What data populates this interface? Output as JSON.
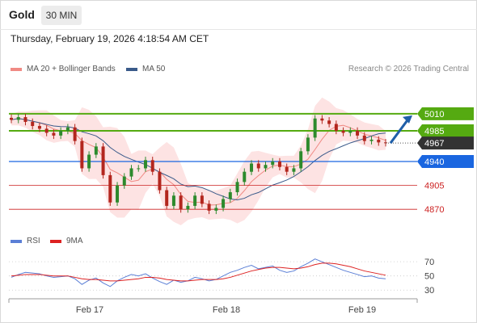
{
  "header": {
    "title": "Gold",
    "timeframe": "30 MIN",
    "timestamp": "Thursday, February 19, 2026 4:18:54 AM CET"
  },
  "legend": {
    "bollinger": {
      "label": "MA 20 + Bollinger Bands",
      "color": "#f08a84"
    },
    "ma50": {
      "label": "MA 50",
      "color": "#3a5a8a"
    },
    "credit": "Research © 2026 Trading Central"
  },
  "rsi_legend": {
    "rsi": {
      "label": "RSI",
      "color": "#5b7fd6"
    },
    "ma9": {
      "label": "9MA",
      "color": "#dd2222"
    }
  },
  "chart_data": [
    {
      "type": "candlestick",
      "x_labels": [
        "Feb 17",
        "Feb 18",
        "Feb 19"
      ],
      "ylim": [
        4843,
        5037
      ],
      "y_scale": "price",
      "current_price": {
        "label": "4967",
        "value": 4967,
        "color": "#333333"
      },
      "resistance_levels": [
        {
          "label": "5010",
          "value": 5010,
          "color": "#55aa11"
        },
        {
          "label": "4985",
          "value": 4985,
          "color": "#55aa11"
        }
      ],
      "pivot_level": {
        "label": "4940",
        "value": 4940,
        "color": "#1a66e0"
      },
      "support_levels": [
        {
          "label": "4905",
          "value": 4905,
          "color": "#cc2222"
        },
        {
          "label": "4870",
          "value": 4870,
          "color": "#cc2222"
        }
      ],
      "forecast_arrow": {
        "from": 4967,
        "to": 5010,
        "color": "#1f5fa8"
      },
      "colors": {
        "up": "#2d8a2d",
        "down": "#b3261e",
        "band_fill": "#fde0e0",
        "ma20": "#f08a84",
        "ma50": "#3a5a8a"
      },
      "close_path": [
        5001,
        5005,
        4998,
        4992,
        4988,
        4982,
        4978,
        4985,
        4990,
        4970,
        4930,
        4950,
        4962,
        4920,
        4880,
        4905,
        4918,
        4930,
        4930,
        4942,
        4925,
        4898,
        4875,
        4890,
        4870,
        4875,
        4890,
        4878,
        4868,
        4872,
        4885,
        4895,
        4910,
        4925,
        4937,
        4930,
        4935,
        4940,
        4932,
        4925,
        4930,
        4955,
        4975,
        5003,
        5000,
        4995,
        4985,
        4982,
        4985,
        4978,
        4970,
        4972,
        4968,
        4967
      ]
    },
    {
      "type": "line",
      "title": "RSI",
      "y_ticks": [
        70,
        50,
        30
      ],
      "ylim": [
        20,
        85
      ],
      "guide_lines": [
        70,
        50,
        30
      ],
      "series": [
        {
          "name": "RSI",
          "color": "#5b7fd6",
          "values": [
            48,
            52,
            55,
            54,
            53,
            50,
            48,
            49,
            50,
            46,
            38,
            44,
            47,
            40,
            35,
            43,
            48,
            52,
            50,
            53,
            47,
            42,
            38,
            44,
            41,
            43,
            48,
            46,
            43,
            45,
            50,
            55,
            58,
            62,
            65,
            60,
            62,
            64,
            58,
            55,
            57,
            63,
            68,
            74,
            70,
            66,
            62,
            58,
            55,
            52,
            49,
            50,
            47,
            46
          ]
        },
        {
          "name": "9MA",
          "color": "#dd2222",
          "values": [
            50,
            51,
            52,
            52,
            52,
            51,
            50,
            50,
            50,
            48,
            46,
            45,
            45,
            44,
            43,
            43,
            44,
            45,
            46,
            48,
            48,
            47,
            45,
            44,
            43,
            43,
            44,
            45,
            45,
            45,
            46,
            48,
            51,
            54,
            57,
            59,
            61,
            62,
            62,
            61,
            60,
            61,
            63,
            66,
            68,
            68,
            67,
            65,
            63,
            60,
            57,
            55,
            53,
            51
          ]
        }
      ]
    }
  ]
}
